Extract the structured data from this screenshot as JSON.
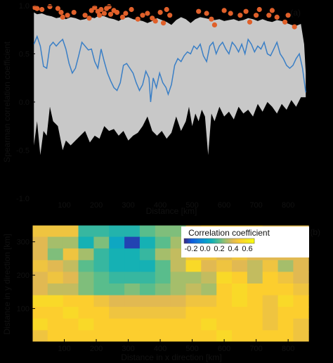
{
  "chart_data": [
    {
      "type": "line",
      "panel_label": "(a)",
      "xlabel": "Distance [km]",
      "ylabel": "Spearman correlation coefficient",
      "xlim": [
        0,
        870
      ],
      "ylim": [
        -1.0,
        1.0
      ],
      "xticks": [
        "100",
        "200",
        "300",
        "400",
        "500",
        "600",
        "700",
        "800"
      ],
      "yticks": [
        "1.0",
        "0.5",
        "0.0",
        "-0.5",
        "-1.0"
      ],
      "background": "#000000",
      "band_color": "#c8c8c8",
      "line_color": "#3a7fc6",
      "dot_color": "#e0602a",
      "band_upper": [
        [
          5,
          0.93
        ],
        [
          15,
          0.91
        ],
        [
          30,
          0.92
        ],
        [
          45,
          0.9
        ],
        [
          60,
          0.89
        ],
        [
          75,
          0.87
        ],
        [
          90,
          0.88
        ],
        [
          105,
          0.86
        ],
        [
          120,
          0.88
        ],
        [
          135,
          0.87
        ],
        [
          150,
          0.85
        ],
        [
          165,
          0.86
        ],
        [
          180,
          0.88
        ],
        [
          195,
          0.87
        ],
        [
          210,
          0.9
        ],
        [
          225,
          0.89
        ],
        [
          240,
          0.87
        ],
        [
          255,
          0.86
        ],
        [
          270,
          0.84
        ],
        [
          285,
          0.87
        ],
        [
          300,
          0.88
        ],
        [
          315,
          0.86
        ],
        [
          330,
          0.85
        ],
        [
          345,
          0.84
        ],
        [
          360,
          0.82
        ],
        [
          375,
          0.84
        ],
        [
          390,
          0.87
        ],
        [
          405,
          0.85
        ],
        [
          420,
          0.83
        ],
        [
          435,
          0.8
        ],
        [
          450,
          0.85
        ],
        [
          465,
          0.88
        ],
        [
          480,
          0.86
        ],
        [
          495,
          0.82
        ],
        [
          510,
          0.86
        ],
        [
          525,
          0.88
        ],
        [
          540,
          0.87
        ],
        [
          555,
          0.86
        ],
        [
          570,
          0.85
        ],
        [
          585,
          0.86
        ],
        [
          600,
          0.84
        ],
        [
          615,
          0.85
        ],
        [
          630,
          0.86
        ],
        [
          645,
          0.84
        ],
        [
          660,
          0.85
        ],
        [
          675,
          0.87
        ],
        [
          690,
          0.86
        ],
        [
          705,
          0.84
        ],
        [
          720,
          0.86
        ],
        [
          735,
          0.84
        ],
        [
          750,
          0.83
        ],
        [
          765,
          0.85
        ],
        [
          780,
          0.84
        ],
        [
          795,
          0.82
        ],
        [
          810,
          0.8
        ],
        [
          825,
          0.79
        ],
        [
          840,
          0.81
        ],
        [
          850,
          0.6
        ],
        [
          855,
          0.3
        ]
      ],
      "band_lower": [
        [
          5,
          -0.45
        ],
        [
          15,
          -0.2
        ],
        [
          25,
          -0.55
        ],
        [
          35,
          -0.3
        ],
        [
          45,
          -0.35
        ],
        [
          55,
          -0.05
        ],
        [
          65,
          -0.2
        ],
        [
          80,
          -0.25
        ],
        [
          95,
          -0.5
        ],
        [
          105,
          -0.4
        ],
        [
          120,
          -0.45
        ],
        [
          135,
          -0.4
        ],
        [
          150,
          -0.35
        ],
        [
          165,
          -0.3
        ],
        [
          180,
          -0.42
        ],
        [
          195,
          -0.35
        ],
        [
          210,
          -0.38
        ],
        [
          225,
          -0.25
        ],
        [
          240,
          -0.3
        ],
        [
          255,
          -0.28
        ],
        [
          270,
          -0.35
        ],
        [
          285,
          -0.3
        ],
        [
          300,
          -0.4
        ],
        [
          315,
          -0.35
        ],
        [
          330,
          -0.32
        ],
        [
          345,
          -0.25
        ],
        [
          360,
          -0.15
        ],
        [
          375,
          -0.3
        ],
        [
          390,
          -0.35
        ],
        [
          405,
          -0.3
        ],
        [
          420,
          -0.38
        ],
        [
          435,
          -0.32
        ],
        [
          450,
          -0.15
        ],
        [
          465,
          -0.3
        ],
        [
          480,
          -0.2
        ],
        [
          490,
          -0.05
        ],
        [
          500,
          -0.25
        ],
        [
          510,
          -0.12
        ],
        [
          520,
          -0.2
        ],
        [
          530,
          -0.08
        ],
        [
          540,
          -0.15
        ],
        [
          550,
          -0.55
        ],
        [
          560,
          -0.12
        ],
        [
          570,
          -0.2
        ],
        [
          585,
          -0.05
        ],
        [
          600,
          -0.15
        ],
        [
          615,
          -0.1
        ],
        [
          630,
          -0.18
        ],
        [
          645,
          -0.05
        ],
        [
          660,
          -0.12
        ],
        [
          675,
          -0.08
        ],
        [
          690,
          -0.15
        ],
        [
          705,
          -0.02
        ],
        [
          720,
          -0.1
        ],
        [
          735,
          0.0
        ],
        [
          750,
          -0.05
        ],
        [
          765,
          -0.12
        ],
        [
          780,
          -0.02
        ],
        [
          795,
          -0.08
        ],
        [
          810,
          0.02
        ],
        [
          825,
          -0.05
        ],
        [
          840,
          0.05
        ],
        [
          855,
          0.05
        ]
      ],
      "series": [
        {
          "values": [
            [
              5,
              0.6
            ],
            [
              15,
              0.68
            ],
            [
              25,
              0.58
            ],
            [
              35,
              0.37
            ],
            [
              45,
              0.35
            ],
            [
              55,
              0.58
            ],
            [
              65,
              0.62
            ],
            [
              75,
              0.58
            ],
            [
              85,
              0.62
            ],
            [
              95,
              0.65
            ],
            [
              105,
              0.55
            ],
            [
              115,
              0.4
            ],
            [
              125,
              0.3
            ],
            [
              135,
              0.35
            ],
            [
              145,
              0.48
            ],
            [
              155,
              0.62
            ],
            [
              165,
              0.58
            ],
            [
              175,
              0.54
            ],
            [
              185,
              0.55
            ],
            [
              195,
              0.42
            ],
            [
              205,
              0.35
            ],
            [
              215,
              0.55
            ],
            [
              225,
              0.42
            ],
            [
              235,
              0.3
            ],
            [
              245,
              0.22
            ],
            [
              255,
              0.15
            ],
            [
              265,
              0.12
            ],
            [
              275,
              0.2
            ],
            [
              285,
              0.38
            ],
            [
              295,
              0.4
            ],
            [
              305,
              0.35
            ],
            [
              315,
              0.3
            ],
            [
              325,
              0.2
            ],
            [
              335,
              0.12
            ],
            [
              345,
              0.18
            ],
            [
              355,
              0.32
            ],
            [
              365,
              0.25
            ],
            [
              370,
              0.0
            ],
            [
              378,
              0.25
            ],
            [
              388,
              0.15
            ],
            [
              398,
              0.3
            ],
            [
              408,
              0.2
            ],
            [
              418,
              0.15
            ],
            [
              425,
              0.08
            ],
            [
              435,
              0.18
            ],
            [
              445,
              0.38
            ],
            [
              455,
              0.45
            ],
            [
              465,
              0.42
            ],
            [
              475,
              0.48
            ],
            [
              485,
              0.52
            ],
            [
              495,
              0.5
            ],
            [
              505,
              0.58
            ],
            [
              515,
              0.55
            ],
            [
              525,
              0.6
            ],
            [
              535,
              0.48
            ],
            [
              545,
              0.42
            ],
            [
              555,
              0.58
            ],
            [
              565,
              0.62
            ],
            [
              575,
              0.5
            ],
            [
              585,
              0.58
            ],
            [
              595,
              0.62
            ],
            [
              605,
              0.55
            ],
            [
              615,
              0.5
            ],
            [
              625,
              0.62
            ],
            [
              635,
              0.58
            ],
            [
              645,
              0.52
            ],
            [
              655,
              0.6
            ],
            [
              665,
              0.5
            ],
            [
              675,
              0.65
            ],
            [
              685,
              0.6
            ],
            [
              695,
              0.52
            ],
            [
              705,
              0.58
            ],
            [
              715,
              0.55
            ],
            [
              725,
              0.62
            ],
            [
              735,
              0.5
            ],
            [
              745,
              0.48
            ],
            [
              755,
              0.55
            ],
            [
              765,
              0.62
            ],
            [
              775,
              0.5
            ],
            [
              785,
              0.45
            ],
            [
              795,
              0.38
            ],
            [
              805,
              0.35
            ],
            [
              815,
              0.38
            ],
            [
              825,
              0.45
            ],
            [
              835,
              0.5
            ],
            [
              845,
              0.35
            ],
            [
              855,
              0.1
            ]
          ]
        }
      ],
      "dots": [
        [
          8,
          0.98
        ],
        [
          15,
          0.97
        ],
        [
          30,
          0.96
        ],
        [
          55,
          0.99
        ],
        [
          80,
          0.97
        ],
        [
          90,
          0.93
        ],
        [
          95,
          0.88
        ],
        [
          110,
          0.9
        ],
        [
          130,
          0.93
        ],
        [
          165,
          0.9
        ],
        [
          178,
          0.87
        ],
        [
          185,
          0.95
        ],
        [
          195,
          0.98
        ],
        [
          205,
          0.94
        ],
        [
          210,
          0.9
        ],
        [
          215,
          0.96
        ],
        [
          225,
          0.92
        ],
        [
          232,
          0.97
        ],
        [
          240,
          0.99
        ],
        [
          245,
          0.91
        ],
        [
          255,
          0.95
        ],
        [
          265,
          0.93
        ],
        [
          282,
          0.88
        ],
        [
          292,
          0.92
        ],
        [
          310,
          0.96
        ],
        [
          330,
          0.86
        ],
        [
          345,
          0.9
        ],
        [
          360,
          0.92
        ],
        [
          375,
          0.87
        ],
        [
          385,
          0.84
        ],
        [
          400,
          0.93
        ],
        [
          410,
          0.82
        ],
        [
          420,
          0.96
        ],
        [
          430,
          0.9
        ],
        [
          520,
          0.94
        ],
        [
          545,
          0.92
        ],
        [
          560,
          0.86
        ],
        [
          570,
          0.8
        ],
        [
          600,
          0.95
        ],
        [
          620,
          0.92
        ],
        [
          650,
          0.9
        ],
        [
          668,
          0.94
        ],
        [
          680,
          0.83
        ],
        [
          700,
          0.9
        ],
        [
          710,
          0.96
        ],
        [
          740,
          0.9
        ],
        [
          750,
          0.95
        ],
        [
          765,
          0.88
        ],
        [
          790,
          0.83
        ],
        [
          800,
          0.9
        ],
        [
          820,
          0.78
        ]
      ]
    },
    {
      "type": "heatmap",
      "panel_label": "(b)",
      "xlabel": "Distance in x direction [km]",
      "ylabel": "Distance in y direction [km]",
      "xlim": [
        0,
        870
      ],
      "ylim": [
        0,
        350
      ],
      "xticks": [
        "100",
        "200",
        "300",
        "400",
        "500",
        "600",
        "700",
        "800"
      ],
      "yticks": [
        "300",
        "200",
        "100"
      ],
      "colorbar_title": "Correlation coefficient",
      "colorbar_ticks": [
        "-0.2",
        "0.0",
        "0.2",
        "0.4",
        "0.6"
      ],
      "colorbar_range": [
        -0.3,
        0.7
      ],
      "cell_width": 48,
      "cell_height": 35,
      "grid": [
        [
          0.45,
          0.45,
          0.45,
          0.15,
          0.15,
          0.12,
          0.12,
          0.2,
          0.25,
          0.25,
          0.4,
          0.45,
          0.45,
          0.45,
          0.45,
          0.4,
          0.4,
          0.4
        ],
        [
          0.4,
          0.3,
          0.3,
          0.1,
          0.25,
          0.05,
          -0.25,
          0.1,
          0.2,
          0.3,
          0.35,
          0.4,
          0.4,
          0.35,
          0.35,
          0.35,
          0.25,
          0.3
        ],
        [
          0.4,
          0.25,
          0.45,
          0.3,
          0.15,
          0.1,
          0.1,
          0.15,
          0.3,
          0.35,
          0.45,
          0.45,
          0.4,
          0.45,
          0.4,
          0.4,
          0.4,
          0.4
        ],
        [
          0.45,
          0.4,
          0.35,
          0.2,
          0.15,
          0.1,
          0.1,
          0.1,
          0.2,
          0.35,
          0.55,
          0.4,
          0.45,
          0.4,
          0.35,
          0.45,
          0.3,
          0.4
        ],
        [
          0.4,
          0.45,
          0.4,
          0.25,
          0.2,
          0.15,
          0.15,
          0.15,
          0.2,
          0.3,
          0.3,
          0.35,
          0.55,
          0.5,
          0.35,
          0.5,
          0.45,
          0.4
        ],
        [
          0.4,
          0.35,
          0.35,
          0.25,
          0.2,
          0.2,
          0.25,
          0.2,
          0.25,
          0.3,
          0.35,
          0.3,
          0.5,
          0.55,
          0.5,
          0.5,
          0.5,
          0.45
        ],
        [
          0.55,
          0.55,
          0.5,
          0.5,
          0.45,
          0.4,
          0.4,
          0.4,
          0.4,
          0.4,
          0.45,
          0.45,
          0.5,
          0.55,
          0.5,
          0.45,
          0.55,
          0.5
        ],
        [
          0.5,
          0.5,
          0.55,
          0.5,
          0.5,
          0.45,
          0.45,
          0.45,
          0.45,
          0.45,
          0.5,
          0.5,
          0.5,
          0.5,
          0.5,
          0.45,
          0.5,
          0.5
        ],
        [
          0.55,
          0.5,
          0.5,
          0.55,
          0.5,
          0.5,
          0.5,
          0.5,
          0.5,
          0.5,
          0.5,
          0.55,
          0.5,
          0.5,
          0.5,
          0.45,
          0.5,
          0.45
        ],
        [
          0.45,
          0.5,
          0.5,
          0.5,
          0.5,
          0.5,
          0.5,
          0.5,
          0.5,
          0.5,
          0.5,
          0.5,
          0.55,
          0.5,
          0.5,
          0.5,
          0.5,
          0.45
        ]
      ]
    }
  ]
}
